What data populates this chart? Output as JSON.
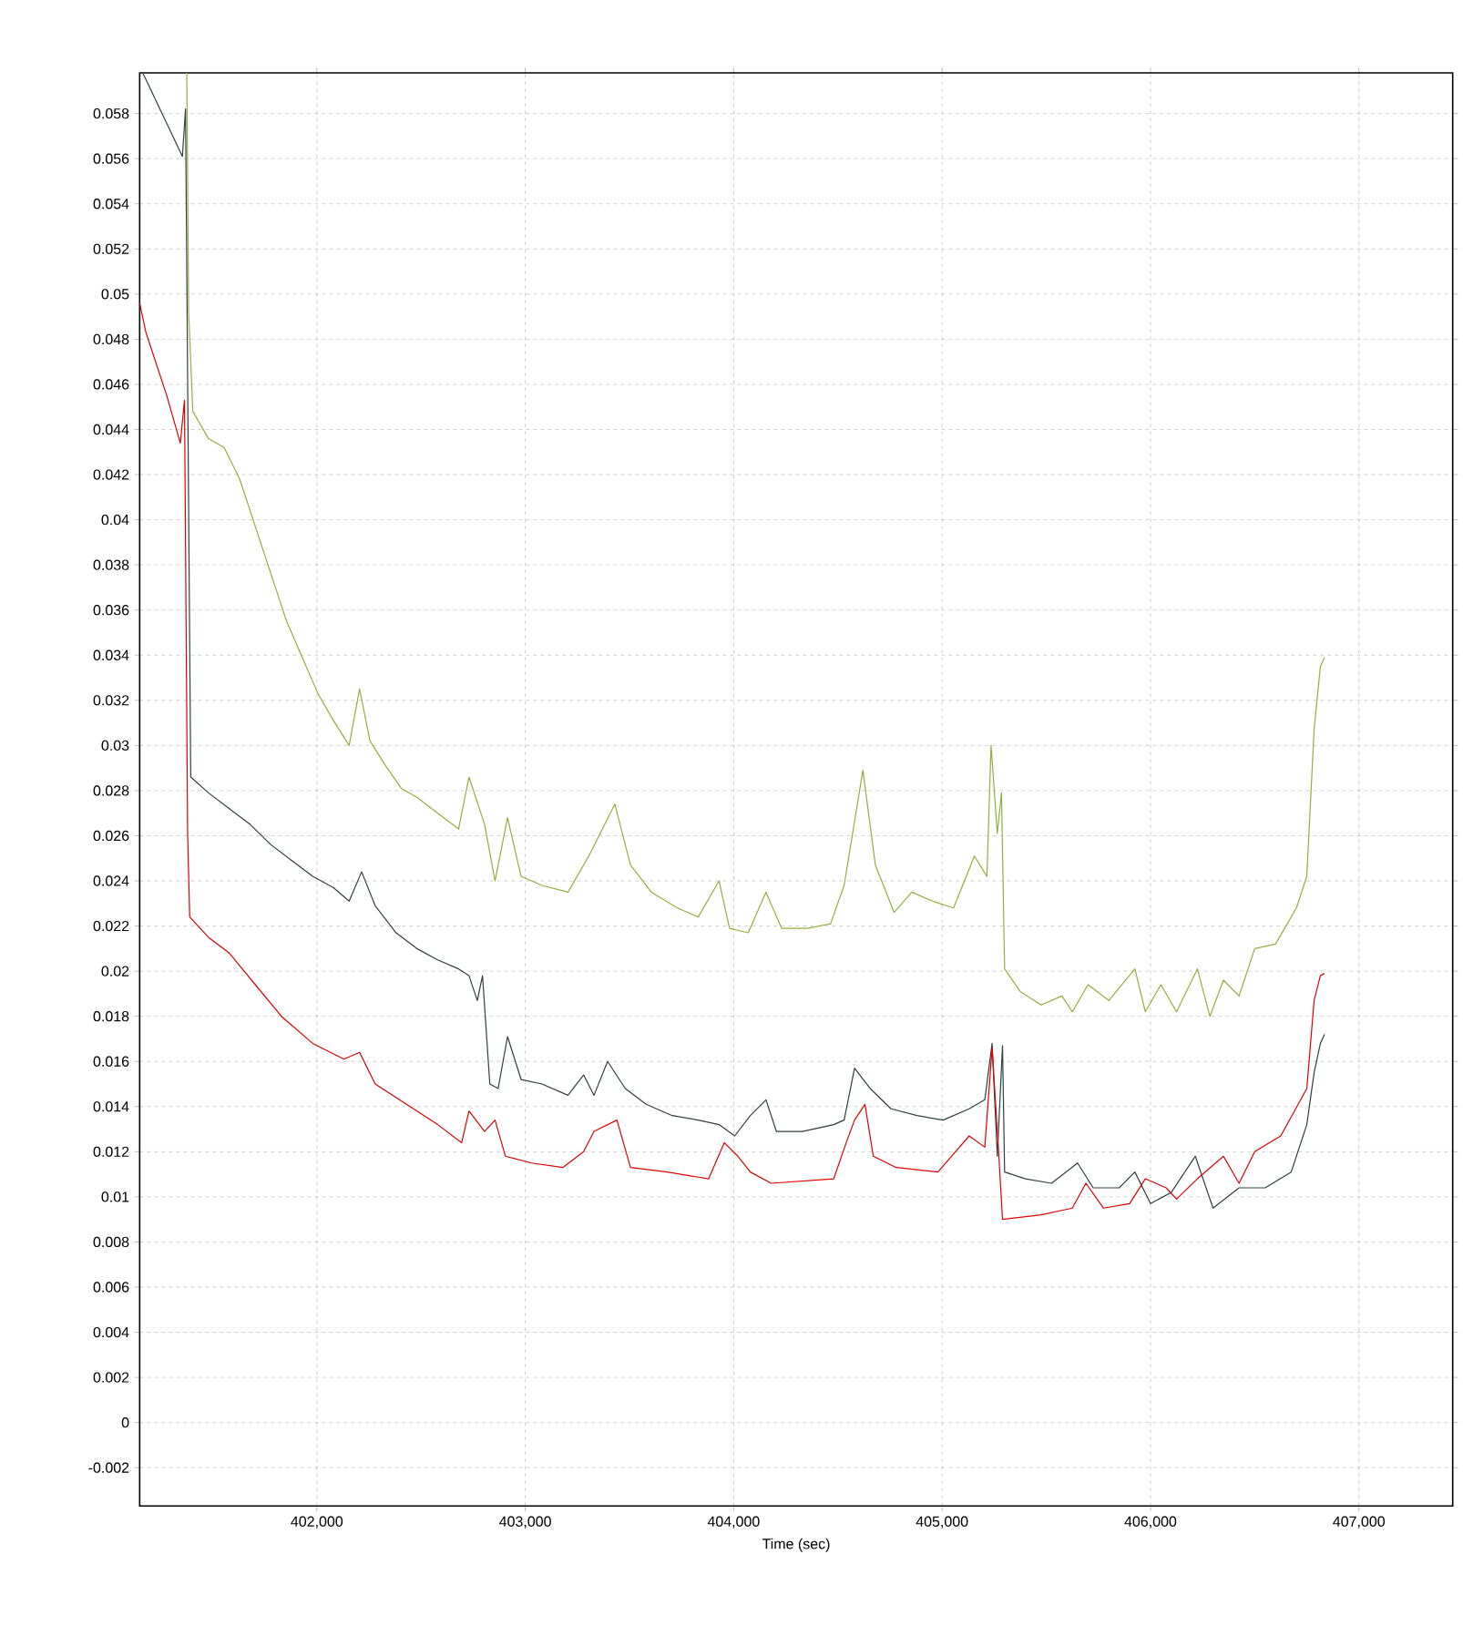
{
  "chart_data": {
    "type": "line",
    "xlabel": "Time (sec)",
    "xlim": [
      401150,
      407450
    ],
    "ylim": [
      -0.0037,
      0.0598
    ],
    "xticks": [
      {
        "value": 402000,
        "label": "402,000"
      },
      {
        "value": 403000,
        "label": "403,000"
      },
      {
        "value": 404000,
        "label": "404,000"
      },
      {
        "value": 405000,
        "label": "405,000"
      },
      {
        "value": 406000,
        "label": "406,000"
      },
      {
        "value": 407000,
        "label": "407,000"
      }
    ],
    "yticks": [
      -0.002,
      0,
      0.002,
      0.004,
      0.006,
      0.008,
      0.01,
      0.012,
      0.014,
      0.016,
      0.018,
      0.02,
      0.022,
      0.024,
      0.026,
      0.028,
      0.03,
      0.032,
      0.034,
      0.036,
      0.038,
      0.04,
      0.042,
      0.044,
      0.046,
      0.048,
      0.05,
      0.052,
      0.054,
      0.056,
      0.058
    ],
    "grid": true,
    "series": [
      {
        "color": "#8fb040",
        "x": [
          401376,
          401385,
          401405,
          401480,
          401555,
          401630,
          401705,
          401780,
          401855,
          401930,
          402005,
          402080,
          402155,
          402205,
          402255,
          402330,
          402405,
          402480,
          402580,
          402680,
          402730,
          402805,
          402855,
          402915,
          402980,
          403080,
          403205,
          403305,
          403430,
          403505,
          403605,
          403730,
          403830,
          403930,
          403980,
          404070,
          404155,
          404230,
          404355,
          404465,
          404530,
          404620,
          404680,
          404770,
          404855,
          404955,
          405055,
          405155,
          405215,
          405235,
          405265,
          405285,
          405300,
          405375,
          405475,
          405575,
          405625,
          405700,
          405800,
          405925,
          405975,
          406050,
          406125,
          406225,
          406285,
          406350,
          406425,
          406500,
          406600,
          406700,
          406750,
          406785,
          406815,
          406835
        ],
        "values": [
          0.0598,
          0.0492,
          0.0448,
          0.0436,
          0.0432,
          0.0418,
          0.0397,
          0.0376,
          0.0355,
          0.0339,
          0.0323,
          0.0311,
          0.03,
          0.0325,
          0.0302,
          0.0291,
          0.0281,
          0.0277,
          0.027,
          0.0263,
          0.0286,
          0.0265,
          0.024,
          0.0268,
          0.0242,
          0.0238,
          0.0235,
          0.0251,
          0.0274,
          0.0247,
          0.0235,
          0.0228,
          0.0224,
          0.024,
          0.0219,
          0.0217,
          0.0235,
          0.0219,
          0.0219,
          0.0221,
          0.0238,
          0.0289,
          0.0247,
          0.0226,
          0.0235,
          0.0231,
          0.0228,
          0.0251,
          0.0242,
          0.03,
          0.0261,
          0.0279,
          0.0201,
          0.0191,
          0.0185,
          0.0189,
          0.0182,
          0.0194,
          0.0187,
          0.0201,
          0.0182,
          0.0194,
          0.0182,
          0.0201,
          0.018,
          0.0196,
          0.0189,
          0.021,
          0.0212,
          0.0228,
          0.0242,
          0.0307,
          0.0335,
          0.0339
        ]
      },
      {
        "color": "#2f3f3f",
        "x": [
          401165,
          401355,
          401370,
          401395,
          401480,
          401580,
          401680,
          401780,
          401880,
          401980,
          402080,
          402155,
          402215,
          402280,
          402380,
          402480,
          402580,
          402680,
          402730,
          402770,
          402795,
          402830,
          402870,
          402915,
          402980,
          403080,
          403205,
          403280,
          403330,
          403395,
          403480,
          403580,
          403705,
          403830,
          403930,
          404005,
          404080,
          404155,
          404205,
          404330,
          404480,
          404530,
          404580,
          404655,
          404755,
          404880,
          405005,
          405130,
          405205,
          405240,
          405265,
          405290,
          405300,
          405400,
          405525,
          405650,
          405725,
          405850,
          405925,
          406000,
          406100,
          406215,
          406300,
          406425,
          406550,
          406675,
          406750,
          406785,
          406815,
          406835
        ],
        "values": [
          0.0598,
          0.0561,
          0.0582,
          0.0286,
          0.0279,
          0.0272,
          0.0265,
          0.0256,
          0.0249,
          0.0242,
          0.0237,
          0.0231,
          0.0244,
          0.0229,
          0.0217,
          0.021,
          0.0205,
          0.0201,
          0.0198,
          0.0187,
          0.0198,
          0.015,
          0.0148,
          0.0171,
          0.0152,
          0.015,
          0.0145,
          0.0154,
          0.0145,
          0.016,
          0.0148,
          0.0141,
          0.0136,
          0.0134,
          0.0132,
          0.0127,
          0.0136,
          0.0143,
          0.0129,
          0.0129,
          0.0132,
          0.0134,
          0.0157,
          0.0148,
          0.0139,
          0.0136,
          0.0134,
          0.0139,
          0.0143,
          0.0168,
          0.0118,
          0.0167,
          0.0111,
          0.0108,
          0.0106,
          0.0115,
          0.0104,
          0.0104,
          0.0111,
          0.0097,
          0.0102,
          0.0118,
          0.0095,
          0.0104,
          0.0104,
          0.0111,
          0.0132,
          0.0155,
          0.0168,
          0.0172
        ]
      },
      {
        "color": "#e00000",
        "x": [
          401150,
          401180,
          401280,
          401345,
          401365,
          401380,
          401390,
          401480,
          401580,
          401705,
          401830,
          401980,
          402130,
          402205,
          402280,
          402430,
          402580,
          402695,
          402730,
          402805,
          402855,
          402905,
          403030,
          403180,
          403280,
          403330,
          403440,
          403505,
          403680,
          403880,
          403955,
          404020,
          404080,
          404180,
          404480,
          404540,
          404580,
          404630,
          404670,
          404780,
          404980,
          405130,
          405205,
          405240,
          405270,
          405290,
          405475,
          405625,
          405690,
          405775,
          405900,
          405975,
          406075,
          406125,
          406225,
          406350,
          406425,
          406500,
          406625,
          406750,
          406785,
          406815,
          406835
        ],
        "values": [
          0.0496,
          0.0483,
          0.0455,
          0.0434,
          0.0453,
          0.0261,
          0.0224,
          0.0215,
          0.0208,
          0.0194,
          0.018,
          0.0168,
          0.0161,
          0.0164,
          0.015,
          0.0141,
          0.0132,
          0.0124,
          0.0138,
          0.0129,
          0.0134,
          0.0118,
          0.0115,
          0.0113,
          0.012,
          0.0129,
          0.0134,
          0.0113,
          0.0111,
          0.0108,
          0.0124,
          0.0118,
          0.0111,
          0.0106,
          0.0108,
          0.0124,
          0.0134,
          0.0141,
          0.0118,
          0.0113,
          0.0111,
          0.0127,
          0.0122,
          0.0166,
          0.0122,
          0.009,
          0.0092,
          0.0095,
          0.0106,
          0.0095,
          0.0097,
          0.0108,
          0.0104,
          0.0099,
          0.0108,
          0.0118,
          0.0106,
          0.012,
          0.0127,
          0.0148,
          0.0187,
          0.0198,
          0.0199
        ]
      }
    ]
  }
}
